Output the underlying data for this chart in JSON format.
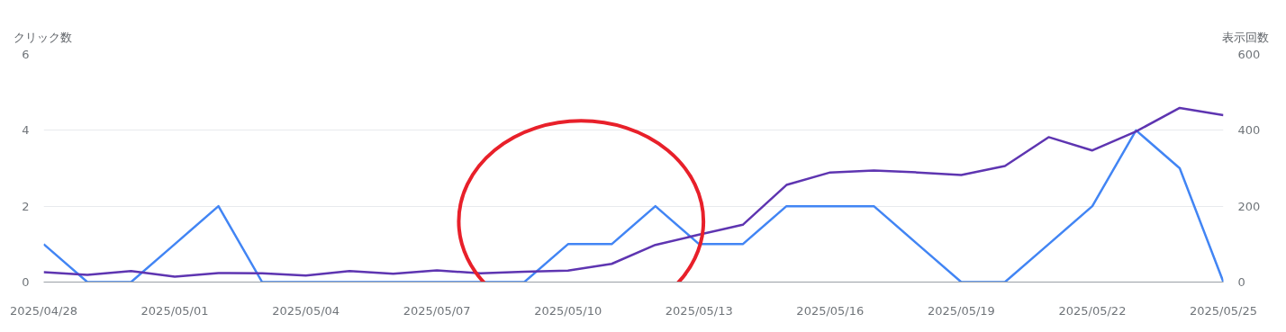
{
  "chart_data": {
    "type": "line",
    "ylabel": "クリック数",
    "y2label": "表示回数",
    "x": [
      "2025-04-28",
      "2025-04-29",
      "2025-04-30",
      "2025-05-01",
      "2025-05-02",
      "2025-05-03",
      "2025-05-04",
      "2025-05-05",
      "2025-05-06",
      "2025-05-07",
      "2025-05-08",
      "2025-05-09",
      "2025-05-10",
      "2025-05-11",
      "2025-05-12",
      "2025-05-13",
      "2025-05-14",
      "2025-05-15",
      "2025-05-16",
      "2025-05-17",
      "2025-05-18",
      "2025-05-19",
      "2025-05-20",
      "2025-05-21",
      "2025-05-22",
      "2025-05-23",
      "2025-05-24",
      "2025-05-25"
    ],
    "series": [
      {
        "color": "#4285f4",
        "values": [
          1,
          0,
          0,
          1,
          2,
          0,
          0,
          0,
          0,
          0,
          0,
          0,
          1,
          1,
          2,
          1,
          1,
          2,
          2,
          2,
          1,
          0,
          0,
          1,
          2,
          4,
          3,
          0
        ]
      },
      {
        "color": "#5e35b1",
        "axis": "y2",
        "values": [
          26,
          19,
          29,
          14,
          24,
          23,
          17,
          29,
          22,
          31,
          23,
          27,
          30,
          48,
          98,
          125,
          151,
          256,
          289,
          294,
          289,
          282,
          306,
          382,
          347,
          397,
          459,
          440
        ]
      }
    ],
    "xlim": [
      "2025-04-28",
      "2025-05-25"
    ],
    "xticks": [
      {
        "value": "2025-04-28",
        "label": "2025/04/28"
      },
      {
        "value": "2025-05-01",
        "label": "2025/05/01"
      },
      {
        "value": "2025-05-04",
        "label": "2025/05/04"
      },
      {
        "value": "2025-05-07",
        "label": "2025/05/07"
      },
      {
        "value": "2025-05-10",
        "label": "2025/05/10"
      },
      {
        "value": "2025-05-13",
        "label": "2025/05/13"
      },
      {
        "value": "2025-05-16",
        "label": "2025/05/16"
      },
      {
        "value": "2025-05-19",
        "label": "2025/05/19"
      },
      {
        "value": "2025-05-22",
        "label": "2025/05/22"
      },
      {
        "value": "2025-05-25",
        "label": "2025/05/25"
      }
    ],
    "ylim": [
      0,
      6
    ],
    "yticks": [
      0,
      2,
      4,
      6
    ],
    "y2lim": [
      0,
      600
    ],
    "y2ticks": [
      0,
      200,
      400,
      600
    ],
    "grid": "y",
    "marker": "none",
    "line_style": "solid"
  }
}
